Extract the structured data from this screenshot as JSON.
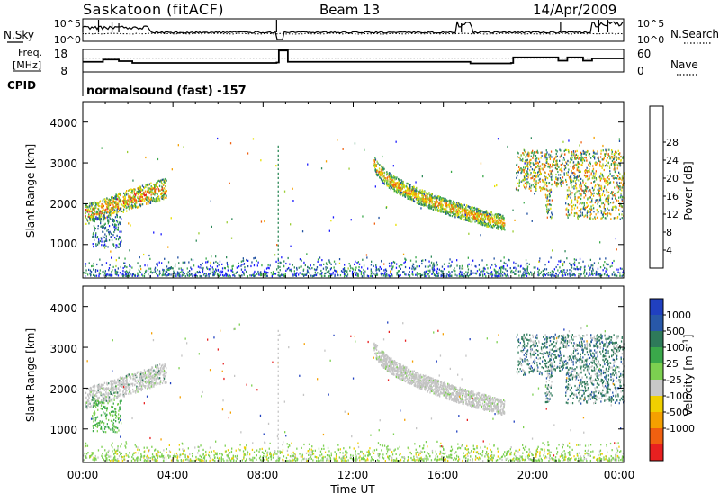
{
  "header": {
    "station": "Saskatoon (fitACF)",
    "beam": "Beam 13",
    "date": "14/Apr/2009"
  },
  "left_labels": {
    "nsky": "N.Sky",
    "freq_line1": "Freq.",
    "freq_line2": "[MHz]",
    "cpid": "CPID"
  },
  "right_labels": {
    "nsearch": "N.Search",
    "nave": "Nave"
  },
  "cpid_text": "normalsound (fast) -157",
  "chart_data": [
    {
      "type": "line",
      "panel": "noise",
      "yticks_left": [
        "10^5",
        "10^0"
      ],
      "yticks_right": [
        "10^5",
        "10^0"
      ],
      "series": [
        {
          "name": "N.Sky",
          "style": "solid"
        },
        {
          "name": "N.Search",
          "style": "dotted"
        }
      ]
    },
    {
      "type": "line",
      "panel": "frequency",
      "yticks_left": [
        "18",
        "8"
      ],
      "yticks_right": [
        "60",
        "0"
      ],
      "ylim_left": [
        8,
        18
      ],
      "ylim_right": [
        0,
        60
      ],
      "series": [
        {
          "name": "Freq.",
          "style": "solid",
          "x": [
            0,
            0.9,
            1.6,
            2.2,
            8.6,
            8.7,
            9.0,
            9.1,
            16.8,
            17.2,
            19.0,
            19.1,
            21.1,
            21.5,
            22.2,
            22.6,
            24
          ],
          "y": [
            12.5,
            13.5,
            12.8,
            12.0,
            12.2,
            17.5,
            17.5,
            12.5,
            12.5,
            11.8,
            12.0,
            14.5,
            13.0,
            14.5,
            13.0,
            14.0,
            14.0
          ]
        },
        {
          "name": "Nave",
          "style": "dotted",
          "x": [
            0,
            24
          ],
          "y": [
            37,
            37
          ]
        }
      ]
    },
    {
      "type": "heatmap",
      "panel": "power",
      "ylabel": "Slant Range [km]",
      "yticks": [
        "1000",
        "2000",
        "3000",
        "4000"
      ],
      "colorbar_label": "Power [dB]",
      "colorbar_ticks": [
        "4",
        "8",
        "12",
        "16",
        "20",
        "24",
        "28"
      ],
      "colorbar_colors": [
        "#1a1aff",
        "#1f4fa0",
        "#2e8a5a",
        "#3aa84a",
        "#9acd32",
        "#e8e000",
        "#f5a000",
        "#f06010",
        "#e82020"
      ],
      "features": [
        {
          "x_start": 0.1,
          "x_end": 3.7,
          "range_start": 1700,
          "range_end": 2500
        },
        {
          "x_start": 12.9,
          "x_end": 18.7,
          "range_start": 1200,
          "range_end": 3200
        },
        {
          "x_start": 19.2,
          "x_end": 24.0,
          "range_start": 1600,
          "range_end": 3300
        }
      ]
    },
    {
      "type": "heatmap",
      "panel": "velocity",
      "ylabel": "Slant Range [km]",
      "yticks": [
        "1000",
        "2000",
        "3000",
        "4000"
      ],
      "colorbar_label": "Velocity [m s-1]",
      "colorbar_ticks": [
        "1000",
        "500",
        "100",
        "25",
        "-25",
        "-100",
        "-500",
        "-1000"
      ],
      "colorbar_colors": [
        "#2040c0",
        "#2858a8",
        "#2e7a5a",
        "#3aa84a",
        "#7cd050",
        "#c8c8c8",
        "#f0d000",
        "#f5a000",
        "#f06010",
        "#e82020"
      ],
      "xlabel": "Time UT",
      "xticks": [
        "00:00",
        "04:00",
        "08:00",
        "12:00",
        "16:00",
        "20:00",
        "00:00"
      ]
    }
  ]
}
